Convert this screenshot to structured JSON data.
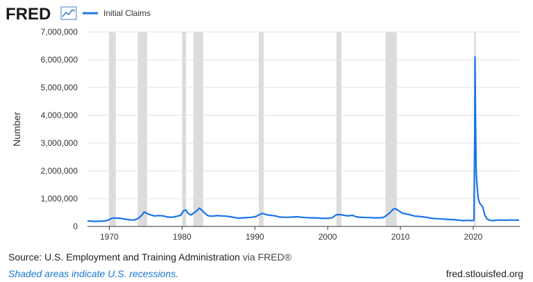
{
  "header": {
    "logo_text": "FRED",
    "logo_icon": "line-chart-icon",
    "brand_color": "#1a1a1a",
    "icon_color": "#3f7cc0"
  },
  "chart_data": {
    "type": "line",
    "title": "",
    "xlabel": "",
    "ylabel": "Number",
    "xlim": [
      1967.0,
      2026.4
    ],
    "ylim": [
      0,
      7000000
    ],
    "grid": true,
    "legend_position": "top-left",
    "line_color": "#1a73e8",
    "recession_color": "#dcdcdc",
    "y_ticks": [
      {
        "value": 0,
        "label": "0"
      },
      {
        "value": 1000000,
        "label": "1,000,000"
      },
      {
        "value": 2000000,
        "label": "2,000,000"
      },
      {
        "value": 3000000,
        "label": "3,000,000"
      },
      {
        "value": 4000000,
        "label": "4,000,000"
      },
      {
        "value": 5000000,
        "label": "5,000,000"
      },
      {
        "value": 6000000,
        "label": "6,000,000"
      },
      {
        "value": 7000000,
        "label": "7,000,000"
      }
    ],
    "x_ticks": [
      {
        "value": 1970,
        "label": "1970"
      },
      {
        "value": 1980,
        "label": "1980"
      },
      {
        "value": 1990,
        "label": "1990"
      },
      {
        "value": 2000,
        "label": "2000"
      },
      {
        "value": 2010,
        "label": "2010"
      },
      {
        "value": 2020,
        "label": "2020"
      }
    ],
    "recessions": [
      [
        1969.95,
        1970.9
      ],
      [
        1973.9,
        1975.2
      ],
      [
        1980.0,
        1980.55
      ],
      [
        1981.55,
        1982.9
      ],
      [
        1990.55,
        1991.2
      ],
      [
        2001.2,
        2001.9
      ],
      [
        2007.95,
        2009.5
      ],
      [
        2020.1,
        2020.35
      ]
    ],
    "series": [
      {
        "name": "Initial Claims",
        "x": [
          1967.0,
          1967.5,
          1968.0,
          1968.6,
          1969.2,
          1969.8,
          1970.4,
          1971.0,
          1971.6,
          1972.2,
          1972.8,
          1973.4,
          1973.9,
          1974.4,
          1974.8,
          1975.2,
          1975.6,
          1976.2,
          1976.8,
          1977.4,
          1978.0,
          1978.6,
          1979.2,
          1979.8,
          1980.2,
          1980.5,
          1980.8,
          1981.2,
          1981.6,
          1982.0,
          1982.4,
          1982.8,
          1983.2,
          1983.6,
          1984.2,
          1984.8,
          1985.4,
          1986.0,
          1986.6,
          1987.2,
          1987.8,
          1988.4,
          1989.0,
          1989.6,
          1990.2,
          1990.7,
          1991.1,
          1991.6,
          1992.2,
          1992.8,
          1993.4,
          1994.0,
          1994.6,
          1995.2,
          1995.8,
          1996.4,
          1997.0,
          1997.6,
          1998.2,
          1998.8,
          1999.4,
          2000.0,
          2000.6,
          2001.2,
          2001.7,
          2002.2,
          2002.8,
          2003.4,
          2004.0,
          2004.6,
          2005.2,
          2005.8,
          2006.4,
          2007.0,
          2007.6,
          2008.0,
          2008.5,
          2009.0,
          2009.3,
          2009.8,
          2010.3,
          2010.8,
          2011.4,
          2012.0,
          2012.6,
          2013.2,
          2013.8,
          2014.4,
          2015.0,
          2015.6,
          2016.2,
          2016.8,
          2017.4,
          2018.0,
          2018.6,
          2019.2,
          2019.8,
          2020.1,
          2020.2,
          2020.25,
          2020.3,
          2020.4,
          2020.55,
          2020.7,
          2020.85,
          2021.0,
          2021.3,
          2021.6,
          2021.9,
          2022.3,
          2022.8,
          2023.3,
          2023.8,
          2024.3,
          2024.8,
          2025.3,
          2025.8,
          2026.3
        ],
        "values": [
          200000,
          190000,
          180000,
          190000,
          190000,
          220000,
          300000,
          300000,
          290000,
          260000,
          240000,
          230000,
          280000,
          380000,
          520000,
          470000,
          420000,
          380000,
          390000,
          380000,
          340000,
          330000,
          360000,
          400000,
          560000,
          600000,
          480000,
          410000,
          480000,
          560000,
          660000,
          560000,
          460000,
          380000,
          370000,
          390000,
          380000,
          370000,
          350000,
          320000,
          300000,
          310000,
          320000,
          330000,
          360000,
          440000,
          470000,
          420000,
          400000,
          380000,
          340000,
          330000,
          330000,
          340000,
          350000,
          330000,
          320000,
          310000,
          310000,
          300000,
          290000,
          290000,
          310000,
          420000,
          430000,
          400000,
          380000,
          400000,
          340000,
          330000,
          320000,
          320000,
          310000,
          310000,
          320000,
          380000,
          480000,
          620000,
          640000,
          560000,
          470000,
          450000,
          410000,
          370000,
          360000,
          340000,
          320000,
          290000,
          280000,
          270000,
          260000,
          250000,
          240000,
          230000,
          210000,
          220000,
          210000,
          220000,
          3300000,
          6100000,
          4400000,
          2000000,
          1400000,
          1000000,
          860000,
          800000,
          700000,
          400000,
          270000,
          220000,
          210000,
          230000,
          230000,
          220000,
          230000,
          230000,
          230000,
          225000
        ]
      }
    ]
  },
  "footer": {
    "source_text": "Source: U.S. Employment and Training Administration",
    "source_via": "via FRED®",
    "note": "Shaded areas indicate U.S. recessions.",
    "site": "fred.stlouisfed.org"
  }
}
